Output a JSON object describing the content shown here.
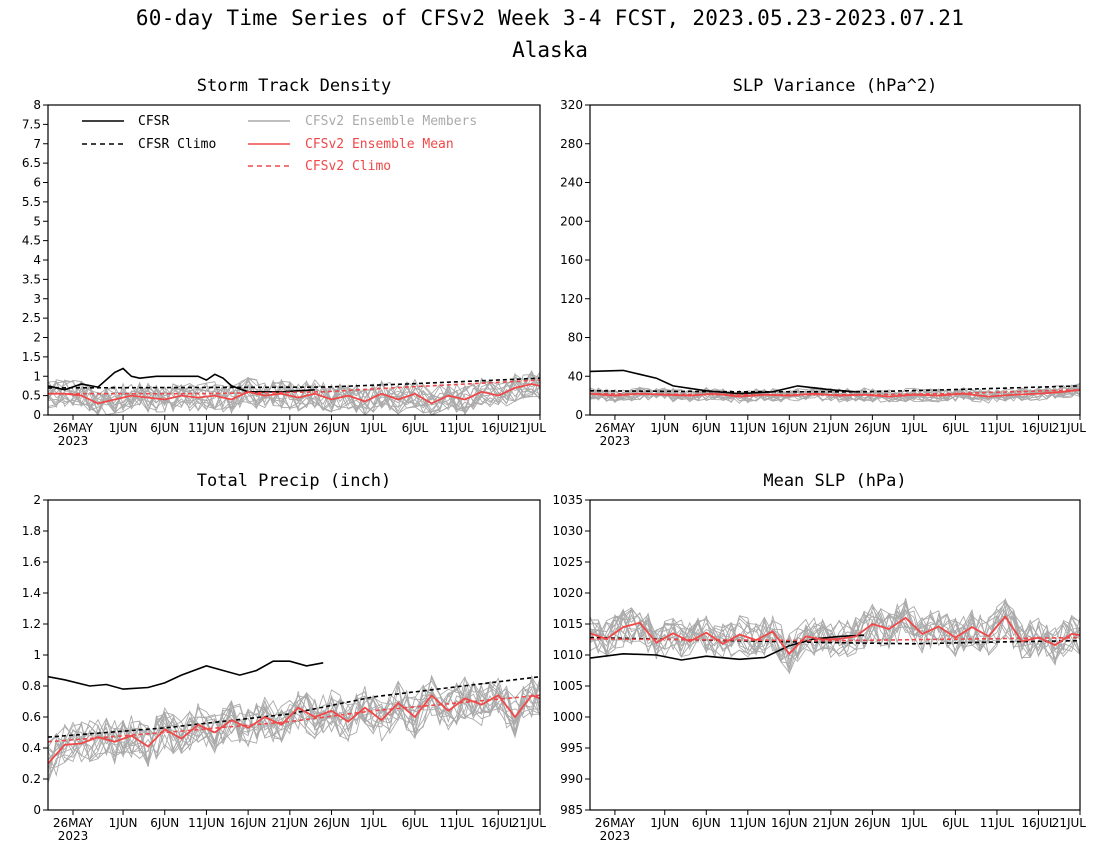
{
  "figure": {
    "title": "60-day Time Series of CFSv2 Week 3-4 FCST, 2023.05.23-2023.07.21",
    "subtitle": "Alaska"
  },
  "legend": {
    "placement": "top-left of Storm Track Density panel",
    "entries": [
      {
        "label": "CFSR",
        "color": "#000000",
        "style": "solid"
      },
      {
        "label": "CFSR Climo",
        "color": "#000000",
        "style": "dashed"
      },
      {
        "label": "CFSv2 Ensemble Members",
        "color": "#aaaaaa",
        "style": "solid"
      },
      {
        "label": "CFSv2 Ensemble Mean",
        "color": "#f04848",
        "style": "solid"
      },
      {
        "label": "CFSv2 Climo",
        "color": "#f04848",
        "style": "dashed"
      }
    ]
  },
  "x_axis": {
    "start_date": "2023-05-23",
    "end_date": "2023-07-21",
    "tick_labels": [
      "26MAY",
      "1JUN",
      "6JUN",
      "11JUN",
      "16JUN",
      "21JUN",
      "26JUN",
      "1JUL",
      "6JUL",
      "11JUL",
      "16JUL",
      "21JUL"
    ],
    "tick_dates": [
      "2023-05-26",
      "2023-06-01",
      "2023-06-06",
      "2023-06-11",
      "2023-06-16",
      "2023-06-21",
      "2023-06-26",
      "2023-07-01",
      "2023-07-06",
      "2023-07-11",
      "2023-07-16",
      "2023-07-21"
    ],
    "year_label": "2023"
  },
  "chart_data": [
    {
      "type": "line",
      "title": "Storm Track Density",
      "ylim": [
        0,
        8
      ],
      "yticks": [
        "0",
        "0.5",
        "1",
        "1.5",
        "2",
        "2.5",
        "3",
        "3.5",
        "4",
        "4.5",
        "5",
        "5.5",
        "6",
        "6.5",
        "7",
        "7.5",
        "8"
      ],
      "ytick_values": [
        0,
        0.5,
        1,
        1.5,
        2,
        2.5,
        3,
        3.5,
        4,
        4.5,
        5,
        5.5,
        6,
        6.5,
        7,
        7.5,
        8
      ],
      "series": [
        {
          "name": "CFSR",
          "x": [
            "2023-05-23",
            "2023-05-25",
            "2023-05-27",
            "2023-05-29",
            "2023-05-31",
            "2023-06-01",
            "2023-06-02",
            "2023-06-03",
            "2023-06-05",
            "2023-06-08",
            "2023-06-10",
            "2023-06-11",
            "2023-06-12",
            "2023-06-13",
            "2023-06-14",
            "2023-06-16",
            "2023-06-20",
            "2023-06-24"
          ],
          "values": [
            0.75,
            0.65,
            0.8,
            0.72,
            1.1,
            1.2,
            1.0,
            0.95,
            1.0,
            1.0,
            1.0,
            0.9,
            1.05,
            0.95,
            0.75,
            0.6,
            0.6,
            0.65
          ]
        },
        {
          "name": "CFSR Climo",
          "x": [
            "2023-05-23",
            "2023-06-10",
            "2023-06-25",
            "2023-07-05",
            "2023-07-21"
          ],
          "values": [
            0.7,
            0.71,
            0.72,
            0.8,
            0.95
          ]
        },
        {
          "name": "CFSv2 Ensemble Mean",
          "x": [
            "2023-05-23",
            "2023-05-25",
            "2023-05-27",
            "2023-05-29",
            "2023-05-31",
            "2023-06-02",
            "2023-06-04",
            "2023-06-06",
            "2023-06-08",
            "2023-06-10",
            "2023-06-12",
            "2023-06-14",
            "2023-06-16",
            "2023-06-18",
            "2023-06-20",
            "2023-06-22",
            "2023-06-24",
            "2023-06-26",
            "2023-06-28",
            "2023-06-30",
            "2023-07-02",
            "2023-07-04",
            "2023-07-06",
            "2023-07-08",
            "2023-07-10",
            "2023-07-12",
            "2023-07-14",
            "2023-07-16",
            "2023-07-18",
            "2023-07-20",
            "2023-07-21"
          ],
          "values": [
            0.55,
            0.55,
            0.5,
            0.3,
            0.4,
            0.5,
            0.45,
            0.4,
            0.5,
            0.45,
            0.5,
            0.4,
            0.6,
            0.5,
            0.55,
            0.45,
            0.55,
            0.4,
            0.5,
            0.35,
            0.55,
            0.4,
            0.55,
            0.3,
            0.5,
            0.4,
            0.6,
            0.5,
            0.7,
            0.8,
            0.75
          ]
        },
        {
          "name": "CFSv2 Climo",
          "x": [
            "2023-05-23",
            "2023-06-10",
            "2023-06-25",
            "2023-07-05",
            "2023-07-21"
          ],
          "values": [
            0.55,
            0.55,
            0.6,
            0.72,
            0.9
          ]
        }
      ],
      "members": {
        "count": 16,
        "spread": 0.38,
        "baseline": "CFSv2 Ensemble Mean"
      }
    },
    {
      "type": "line",
      "title": "SLP Variance (hPa^2)",
      "ylim": [
        0,
        320
      ],
      "yticks": [
        "0",
        "40",
        "80",
        "120",
        "160",
        "200",
        "240",
        "280",
        "320"
      ],
      "ytick_values": [
        0,
        40,
        80,
        120,
        160,
        200,
        240,
        280,
        320
      ],
      "series": [
        {
          "name": "CFSR",
          "x": [
            "2023-05-23",
            "2023-05-27",
            "2023-05-29",
            "2023-05-31",
            "2023-06-02",
            "2023-06-06",
            "2023-06-10",
            "2023-06-14",
            "2023-06-17",
            "2023-06-21",
            "2023-06-24"
          ],
          "values": [
            45,
            46,
            42,
            38,
            30,
            25,
            22,
            24,
            30,
            26,
            24
          ]
        },
        {
          "name": "CFSR Climo",
          "x": [
            "2023-05-23",
            "2023-06-10",
            "2023-06-25",
            "2023-07-05",
            "2023-07-21"
          ],
          "values": [
            25,
            24,
            24,
            26,
            30
          ]
        },
        {
          "name": "CFSv2 Ensemble Mean",
          "x": [
            "2023-05-23",
            "2023-05-26",
            "2023-05-29",
            "2023-06-01",
            "2023-06-04",
            "2023-06-07",
            "2023-06-10",
            "2023-06-13",
            "2023-06-16",
            "2023-06-19",
            "2023-06-22",
            "2023-06-25",
            "2023-06-28",
            "2023-07-01",
            "2023-07-04",
            "2023-07-07",
            "2023-07-10",
            "2023-07-13",
            "2023-07-16",
            "2023-07-19",
            "2023-07-21"
          ],
          "values": [
            22,
            20,
            22,
            21,
            20,
            22,
            19,
            21,
            20,
            22,
            20,
            21,
            19,
            21,
            20,
            22,
            19,
            21,
            22,
            24,
            26
          ]
        },
        {
          "name": "CFSv2 Climo",
          "x": [
            "2023-05-23",
            "2023-06-10",
            "2023-06-25",
            "2023-07-05",
            "2023-07-21"
          ],
          "values": [
            22,
            21,
            21,
            22,
            26
          ]
        }
      ],
      "members": {
        "count": 16,
        "spread": 7,
        "baseline": "CFSv2 Ensemble Mean"
      }
    },
    {
      "type": "line",
      "title": "Total Precip (inch)",
      "ylim": [
        0,
        2
      ],
      "yticks": [
        "0",
        "0.2",
        "0.4",
        "0.6",
        "0.8",
        "1",
        "1.2",
        "1.4",
        "1.6",
        "1.8",
        "2"
      ],
      "ytick_values": [
        0,
        0.2,
        0.4,
        0.6,
        0.8,
        1,
        1.2,
        1.4,
        1.6,
        1.8,
        2
      ],
      "series": [
        {
          "name": "CFSR",
          "x": [
            "2023-05-23",
            "2023-05-25",
            "2023-05-28",
            "2023-05-30",
            "2023-06-01",
            "2023-06-04",
            "2023-06-06",
            "2023-06-08",
            "2023-06-11",
            "2023-06-13",
            "2023-06-15",
            "2023-06-17",
            "2023-06-19",
            "2023-06-21",
            "2023-06-23",
            "2023-06-25"
          ],
          "values": [
            0.86,
            0.84,
            0.8,
            0.81,
            0.78,
            0.79,
            0.82,
            0.87,
            0.93,
            0.9,
            0.87,
            0.9,
            0.96,
            0.96,
            0.93,
            0.95
          ]
        },
        {
          "name": "CFSR Climo",
          "x": [
            "2023-05-23",
            "2023-06-06",
            "2023-06-21",
            "2023-07-01",
            "2023-07-21"
          ],
          "values": [
            0.47,
            0.53,
            0.62,
            0.73,
            0.86
          ]
        },
        {
          "name": "CFSv2 Ensemble Mean",
          "x": [
            "2023-05-23",
            "2023-05-25",
            "2023-05-27",
            "2023-05-29",
            "2023-05-31",
            "2023-06-02",
            "2023-06-04",
            "2023-06-06",
            "2023-06-08",
            "2023-06-10",
            "2023-06-12",
            "2023-06-14",
            "2023-06-16",
            "2023-06-18",
            "2023-06-20",
            "2023-06-22",
            "2023-06-24",
            "2023-06-26",
            "2023-06-28",
            "2023-06-30",
            "2023-07-02",
            "2023-07-04",
            "2023-07-06",
            "2023-07-08",
            "2023-07-10",
            "2023-07-12",
            "2023-07-14",
            "2023-07-16",
            "2023-07-18",
            "2023-07-20",
            "2023-07-21"
          ],
          "values": [
            0.3,
            0.42,
            0.43,
            0.47,
            0.44,
            0.48,
            0.41,
            0.52,
            0.46,
            0.55,
            0.5,
            0.58,
            0.53,
            0.6,
            0.55,
            0.66,
            0.6,
            0.64,
            0.57,
            0.66,
            0.58,
            0.69,
            0.6,
            0.74,
            0.64,
            0.72,
            0.68,
            0.74,
            0.6,
            0.74,
            0.72
          ]
        },
        {
          "name": "CFSv2 Climo",
          "x": [
            "2023-05-23",
            "2023-06-06",
            "2023-06-21",
            "2023-07-01",
            "2023-07-21"
          ],
          "values": [
            0.44,
            0.5,
            0.57,
            0.64,
            0.74
          ]
        }
      ],
      "members": {
        "count": 16,
        "spread": 0.14,
        "baseline": "CFSv2 Ensemble Mean"
      }
    },
    {
      "type": "line",
      "title": "Mean SLP (hPa)",
      "ylim": [
        985,
        1035
      ],
      "yticks": [
        "985",
        "990",
        "995",
        "1000",
        "1005",
        "1010",
        "1015",
        "1020",
        "1025",
        "1030",
        "1035"
      ],
      "ytick_values": [
        985,
        990,
        995,
        1000,
        1005,
        1010,
        1015,
        1020,
        1025,
        1030,
        1035
      ],
      "series": [
        {
          "name": "CFSR",
          "x": [
            "2023-05-23",
            "2023-05-27",
            "2023-05-31",
            "2023-06-03",
            "2023-06-06",
            "2023-06-10",
            "2023-06-13",
            "2023-06-16",
            "2023-06-19",
            "2023-06-22",
            "2023-06-25"
          ],
          "values": [
            1009.5,
            1010.2,
            1010.0,
            1009.2,
            1009.8,
            1009.3,
            1009.6,
            1011.5,
            1012.6,
            1013.0,
            1013.2
          ]
        },
        {
          "name": "CFSR Climo",
          "x": [
            "2023-05-23",
            "2023-06-06",
            "2023-06-21",
            "2023-07-01",
            "2023-07-11",
            "2023-07-21"
          ],
          "values": [
            1012.8,
            1012.4,
            1012.0,
            1011.8,
            1012.1,
            1012.3
          ]
        },
        {
          "name": "CFSv2 Ensemble Mean",
          "x": [
            "2023-05-23",
            "2023-05-25",
            "2023-05-27",
            "2023-05-29",
            "2023-05-31",
            "2023-06-02",
            "2023-06-04",
            "2023-06-06",
            "2023-06-08",
            "2023-06-10",
            "2023-06-12",
            "2023-06-14",
            "2023-06-16",
            "2023-06-18",
            "2023-06-20",
            "2023-06-22",
            "2023-06-24",
            "2023-06-26",
            "2023-06-28",
            "2023-06-30",
            "2023-07-02",
            "2023-07-04",
            "2023-07-06",
            "2023-07-08",
            "2023-07-10",
            "2023-07-12",
            "2023-07-14",
            "2023-07-16",
            "2023-07-18",
            "2023-07-20",
            "2023-07-21"
          ],
          "values": [
            1013.5,
            1012.6,
            1014.5,
            1015.2,
            1012.0,
            1013.5,
            1012.2,
            1013.6,
            1011.8,
            1013.3,
            1012.4,
            1013.8,
            1010.2,
            1013.0,
            1012.5,
            1012.6,
            1013.0,
            1015.0,
            1014.2,
            1016.0,
            1013.4,
            1014.6,
            1012.8,
            1014.5,
            1013.0,
            1016.2,
            1012.2,
            1012.8,
            1011.6,
            1013.4,
            1013.2
          ]
        },
        {
          "name": "CFSv2 Climo",
          "x": [
            "2023-05-23",
            "2023-06-21",
            "2023-07-21"
          ],
          "values": [
            1012.6,
            1012.3,
            1012.8
          ]
        }
      ],
      "members": {
        "count": 16,
        "spread": 3.2,
        "baseline": "CFSv2 Ensemble Mean"
      }
    }
  ]
}
